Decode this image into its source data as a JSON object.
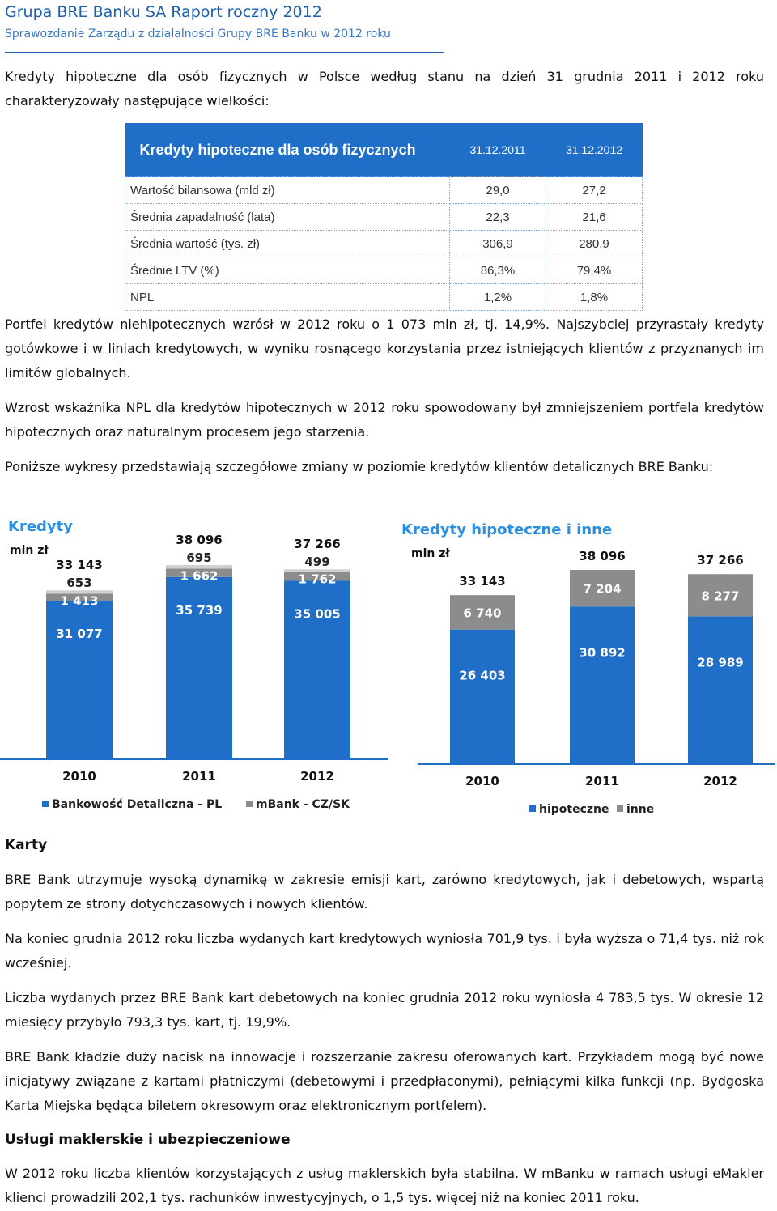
{
  "header": {
    "title": "Grupa BRE Banku SA Raport roczny 2012",
    "subtitle": "Sprawozdanie Zarządu z działalności Grupy BRE Banku w 2012 roku"
  },
  "intro": "Kredyty hipoteczne dla osób fizycznych w Polsce według stanu na dzień 31 grudnia 2011 i 2012 roku charakteryzowały następujące wielkości:",
  "table": {
    "title": "Kredyty hipoteczne dla osób fizycznych",
    "col1": "31.12.2011",
    "col2": "31.12.2012",
    "rows": [
      {
        "label": "Wartość bilansowa (mld zł)",
        "v1": "29,0",
        "v2": "27,2"
      },
      {
        "label": "Średnia zapadalność (lata)",
        "v1": "22,3",
        "v2": "21,6"
      },
      {
        "label": "Średnia wartość (tys. zł)",
        "v1": "306,9",
        "v2": "280,9"
      },
      {
        "label": "Średnie LTV (%)",
        "v1": "86,3%",
        "v2": "79,4%"
      },
      {
        "label": "NPL",
        "v1": "1,2%",
        "v2": "1,8%"
      }
    ]
  },
  "paragraphs": {
    "p1": "Portfel kredytów niehipotecznych wzrósł w 2012 roku o 1 073 mln zł, tj. 14,9%. Najszybciej przyrastały kredyty gotówkowe i w liniach kredytowych, w wyniku rosnącego korzystania przez istniejących klientów z przyznanych im limitów globalnych.",
    "p2": "Wzrost wskaźnika NPL dla kredytów hipotecznych w 2012 roku spowodowany był zmniejszeniem portfela kredytów hipotecznych oraz naturalnym procesem jego starzenia.",
    "p3": "Poniższe wykresy przedstawiają szczegółowe zmiany w poziomie kredytów klientów detalicznych BRE Banku:"
  },
  "chart_data": [
    {
      "type": "bar",
      "stacked": true,
      "title": "Kredyty",
      "unit": "mln zł",
      "categories": [
        "2010",
        "2011",
        "2012"
      ],
      "totals": [
        33143,
        38096,
        37266
      ],
      "series": [
        {
          "name": "Bankowość Detaliczna - PL",
          "color": "#1f6ec8",
          "values": [
            31077,
            35739,
            35005
          ],
          "labels": [
            "31 077",
            "35 739",
            "35 005"
          ]
        },
        {
          "name": "mBank - CZ/SK",
          "color": "#8c8c8c",
          "values": [
            1413,
            1662,
            1762
          ],
          "labels": [
            "1 413",
            "1 662",
            "1 762"
          ]
        },
        {
          "name": "",
          "color": "#d0d0d0",
          "values": [
            653,
            695,
            499
          ],
          "labels": [
            "653",
            "695",
            "499"
          ]
        }
      ],
      "total_labels": [
        "33 143",
        "38 096",
        "37 266"
      ],
      "legend": [
        "Bankowość Detaliczna - PL",
        "mBank - CZ/SK"
      ],
      "legend_position": "bottom"
    },
    {
      "type": "bar",
      "stacked": true,
      "title": "Kredyty hipoteczne i inne",
      "unit": "mln zł",
      "categories": [
        "2010",
        "2011",
        "2012"
      ],
      "totals": [
        33143,
        38096,
        37266
      ],
      "series": [
        {
          "name": "hipoteczne",
          "color": "#1f6ec8",
          "values": [
            26403,
            30892,
            28989
          ],
          "labels": [
            "26 403",
            "30 892",
            "28 989"
          ]
        },
        {
          "name": "inne",
          "color": "#8c8c8c",
          "values": [
            6740,
            7204,
            8277
          ],
          "labels": [
            "6 740",
            "7 204",
            "8 277"
          ]
        }
      ],
      "total_labels": [
        "33 143",
        "38 096",
        "37 266"
      ],
      "legend": [
        "hipoteczne",
        "inne"
      ],
      "legend_position": "bottom"
    }
  ],
  "sections": {
    "karty": {
      "heading": "Karty",
      "p1": "BRE Bank utrzymuje wysoką dynamikę w zakresie emisji kart, zarówno kredytowych, jak i debetowych, wspartą popytem ze strony dotychczasowych i nowych klientów.",
      "p2": "Na koniec grudnia 2012 roku liczba wydanych kart kredytowych wyniosła 701,9 tys. i była wyższa o 71,4 tys. niż rok wcześniej.",
      "p3": "Liczba wydanych przez BRE Bank kart debetowych na koniec grudnia 2012 roku wyniosła 4 783,5 tys. W okresie 12 miesięcy przybyło 793,3 tys. kart, tj. 19,9%.",
      "p4": "BRE Bank kładzie duży nacisk na innowacje i rozszerzanie zakresu oferowanych kart. Przykładem mogą być nowe inicjatywy związane z kartami płatniczymi (debetowymi i przedpłaconymi), pełniącymi kilka funkcji (np. Bydgoska Karta Miejska będąca biletem okresowym oraz elektronicznym portfelem)."
    },
    "maklerskie": {
      "heading": "Usługi maklerskie i ubezpieczeniowe",
      "p1": "W 2012 roku liczba klientów korzystających z usług maklerskich była stabilna. W mBanku w ramach usługi eMakler klienci prowadzili 202,1 tys. rachunków inwestycyjnych, o 1,5 tys. więcej niż na koniec 2011 roku."
    }
  }
}
